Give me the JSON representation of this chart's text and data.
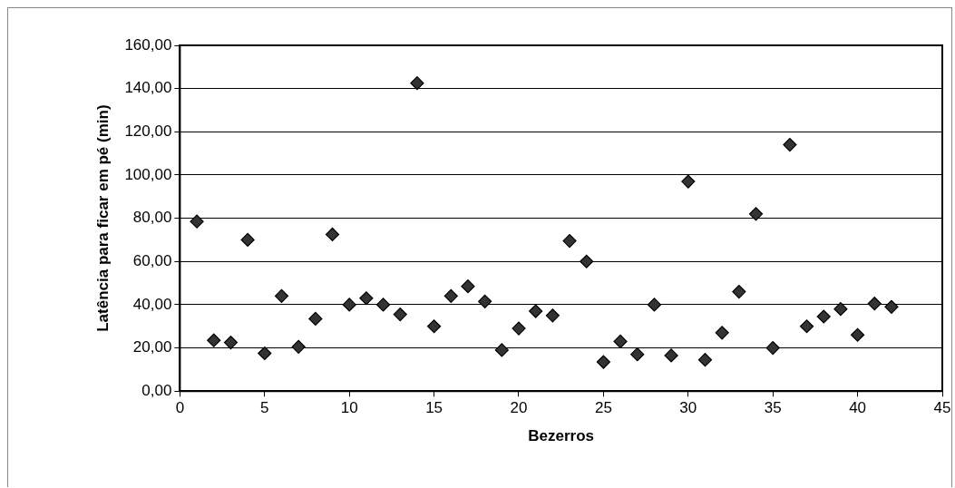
{
  "chart_data": {
    "type": "scatter",
    "xlabel": "Bezerros",
    "ylabel": "Latência para ficar em pé (min)",
    "x": [
      1,
      2,
      3,
      4,
      5,
      6,
      7,
      8,
      9,
      10,
      11,
      12,
      13,
      14,
      15,
      16,
      17,
      18,
      19,
      20,
      21,
      22,
      23,
      24,
      25,
      26,
      27,
      28,
      29,
      30,
      31,
      32,
      33,
      34,
      35,
      36,
      37,
      38,
      39,
      40,
      41,
      42
    ],
    "series": [
      {
        "color": "#333333",
        "values": [
          78.5,
          23.5,
          22.5,
          70,
          17.5,
          44,
          20.5,
          33.5,
          72.5,
          40,
          43,
          40,
          35.5,
          142.5,
          30,
          44,
          48.5,
          41.5,
          19,
          29,
          37,
          35,
          69.5,
          60,
          13.5,
          23,
          17,
          40,
          16.5,
          97,
          14.5,
          27,
          46,
          82,
          20,
          114,
          30,
          34.5,
          38,
          26,
          40.5,
          39
        ]
      }
    ],
    "xlim": [
      0,
      45
    ],
    "xticks": [
      0,
      5,
      10,
      15,
      20,
      25,
      30,
      35,
      40,
      45
    ],
    "ylim": [
      0,
      160
    ],
    "yticks": [
      {
        "value": 0,
        "label": "0,00"
      },
      {
        "value": 20,
        "label": "20,00"
      },
      {
        "value": 40,
        "label": "40,00"
      },
      {
        "value": 60,
        "label": "60,00"
      },
      {
        "value": 80,
        "label": "80,00"
      },
      {
        "value": 100,
        "label": "100,00"
      },
      {
        "value": 120,
        "label": "120,00"
      },
      {
        "value": 140,
        "label": "140,00"
      },
      {
        "value": 160,
        "label": "160,00"
      }
    ],
    "grid": "y",
    "legend": false,
    "marker": "diamond"
  }
}
